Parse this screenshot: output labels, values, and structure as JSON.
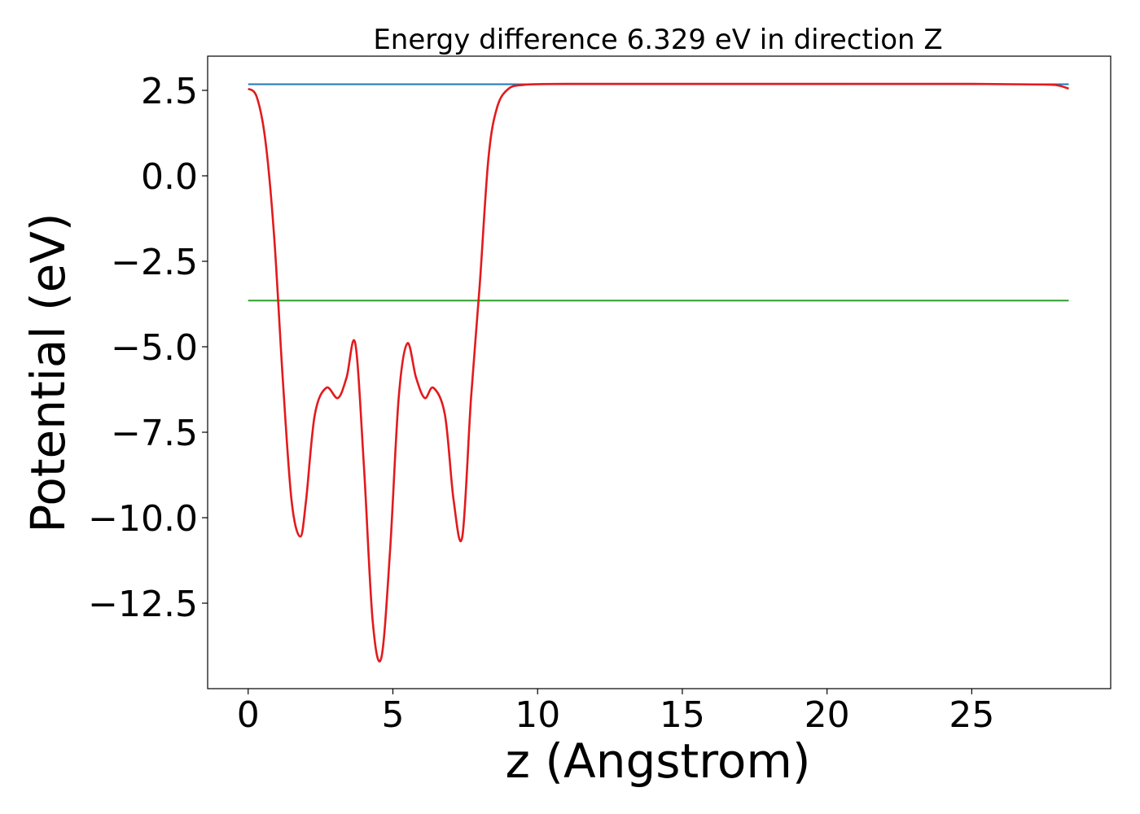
{
  "chart_data": {
    "type": "line",
    "title": "Energy difference 6.329 eV in direction Z",
    "xlabel": "z (Angstrom)",
    "ylabel": "Potential (eV)",
    "xlim": [
      -1.4,
      29.8
    ],
    "ylim": [
      -15.0,
      3.5
    ],
    "grid": false,
    "legend": "none",
    "xticks": [
      0,
      5,
      10,
      15,
      20,
      25
    ],
    "xtick_labels": [
      "0",
      "5",
      "10",
      "15",
      "20",
      "25"
    ],
    "yticks": [
      2.5,
      0.0,
      -2.5,
      -5.0,
      -7.5,
      -10.0,
      -12.5
    ],
    "ytick_labels": [
      "2.5",
      "0.0",
      "−2.5",
      "−5.0",
      "−7.5",
      "−10.0",
      "−12.5"
    ],
    "series": [
      {
        "color": "#1f77b4",
        "x": [
          0,
          28.35
        ],
        "y": [
          2.68,
          2.68
        ]
      },
      {
        "color": "#2ca02c",
        "x": [
          0,
          28.35
        ],
        "y": [
          -3.65,
          -3.65
        ]
      },
      {
        "color": "#e31a1c",
        "x": [
          0,
          0.3,
          0.6,
          0.9,
          1.2,
          1.5,
          1.8,
          2.0,
          2.3,
          2.7,
          3.1,
          3.4,
          3.7,
          4.0,
          4.3,
          4.6,
          4.9,
          5.2,
          5.5,
          5.8,
          6.1,
          6.4,
          6.8,
          7.1,
          7.4,
          7.7,
          8.0,
          8.3,
          8.6,
          9.0,
          9.5,
          10.0,
          11.0,
          15.0,
          20.0,
          25.0,
          27.5,
          28.0,
          28.35
        ],
        "y": [
          2.55,
          2.3,
          1.0,
          -1.8,
          -6.0,
          -9.5,
          -10.55,
          -9.5,
          -7.0,
          -6.2,
          -6.5,
          -5.9,
          -4.9,
          -8.5,
          -13.0,
          -14.1,
          -11.0,
          -6.5,
          -4.9,
          -5.9,
          -6.5,
          -6.2,
          -7.0,
          -9.5,
          -10.55,
          -6.5,
          -3.2,
          0.5,
          2.0,
          2.55,
          2.66,
          2.68,
          2.69,
          2.69,
          2.69,
          2.69,
          2.67,
          2.64,
          2.55
        ]
      }
    ]
  }
}
